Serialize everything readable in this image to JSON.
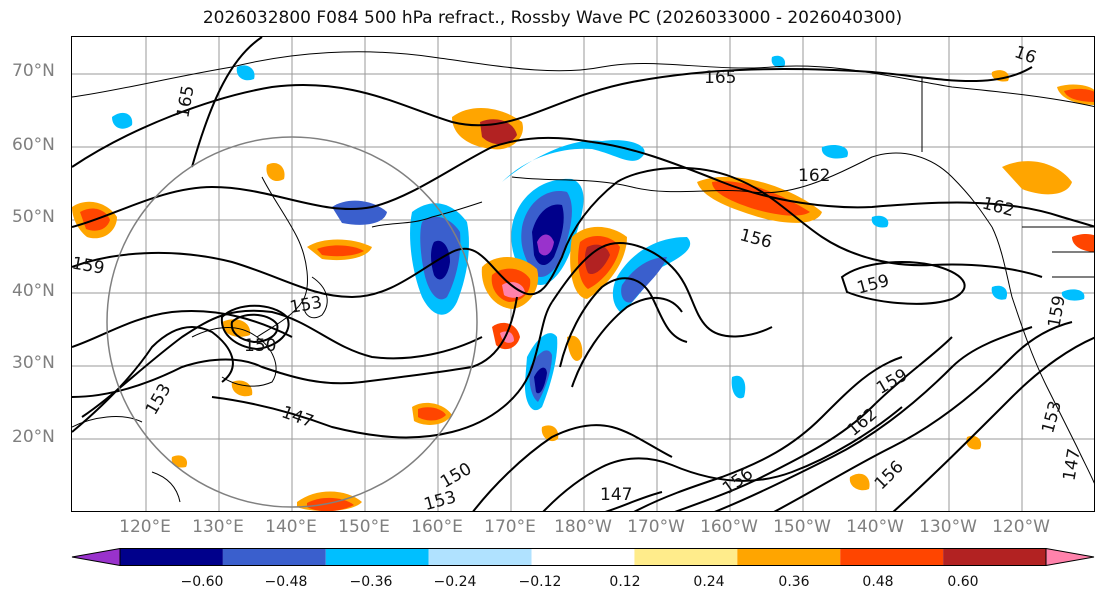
{
  "title": "2026032800 F084 500 hPa refract., Rossby Wave PC (2026033000 - 2026040300)",
  "lat_labels": [
    "70°N",
    "60°N",
    "50°N",
    "40°N",
    "30°N",
    "20°N"
  ],
  "lon_labels": [
    "120°E",
    "130°E",
    "140°E",
    "150°E",
    "160°E",
    "170°E",
    "180°W",
    "170°W",
    "160°W",
    "150°W",
    "140°W",
    "130°W",
    "120°W"
  ],
  "contour_labels": [
    "165",
    "165",
    "162",
    "162",
    "156",
    "159",
    "159",
    "153",
    "150",
    "147",
    "147",
    "150",
    "153",
    "156",
    "156",
    "162",
    "159",
    "153",
    "147",
    "159",
    "16",
    "153"
  ],
  "colorbar": {
    "ticks": [
      "−0.60",
      "−0.48",
      "−0.36",
      "−0.24",
      "−0.12",
      "0.12",
      "0.24",
      "0.36",
      "0.48",
      "0.60"
    ],
    "colors": [
      "#9932cc",
      "#00008b",
      "#3a5fcd",
      "#00bfff",
      "#b0e2ff",
      "#ffffff",
      "#ffec8b",
      "#ffa500",
      "#ff4500",
      "#b22222",
      "#ff82ab"
    ]
  }
}
